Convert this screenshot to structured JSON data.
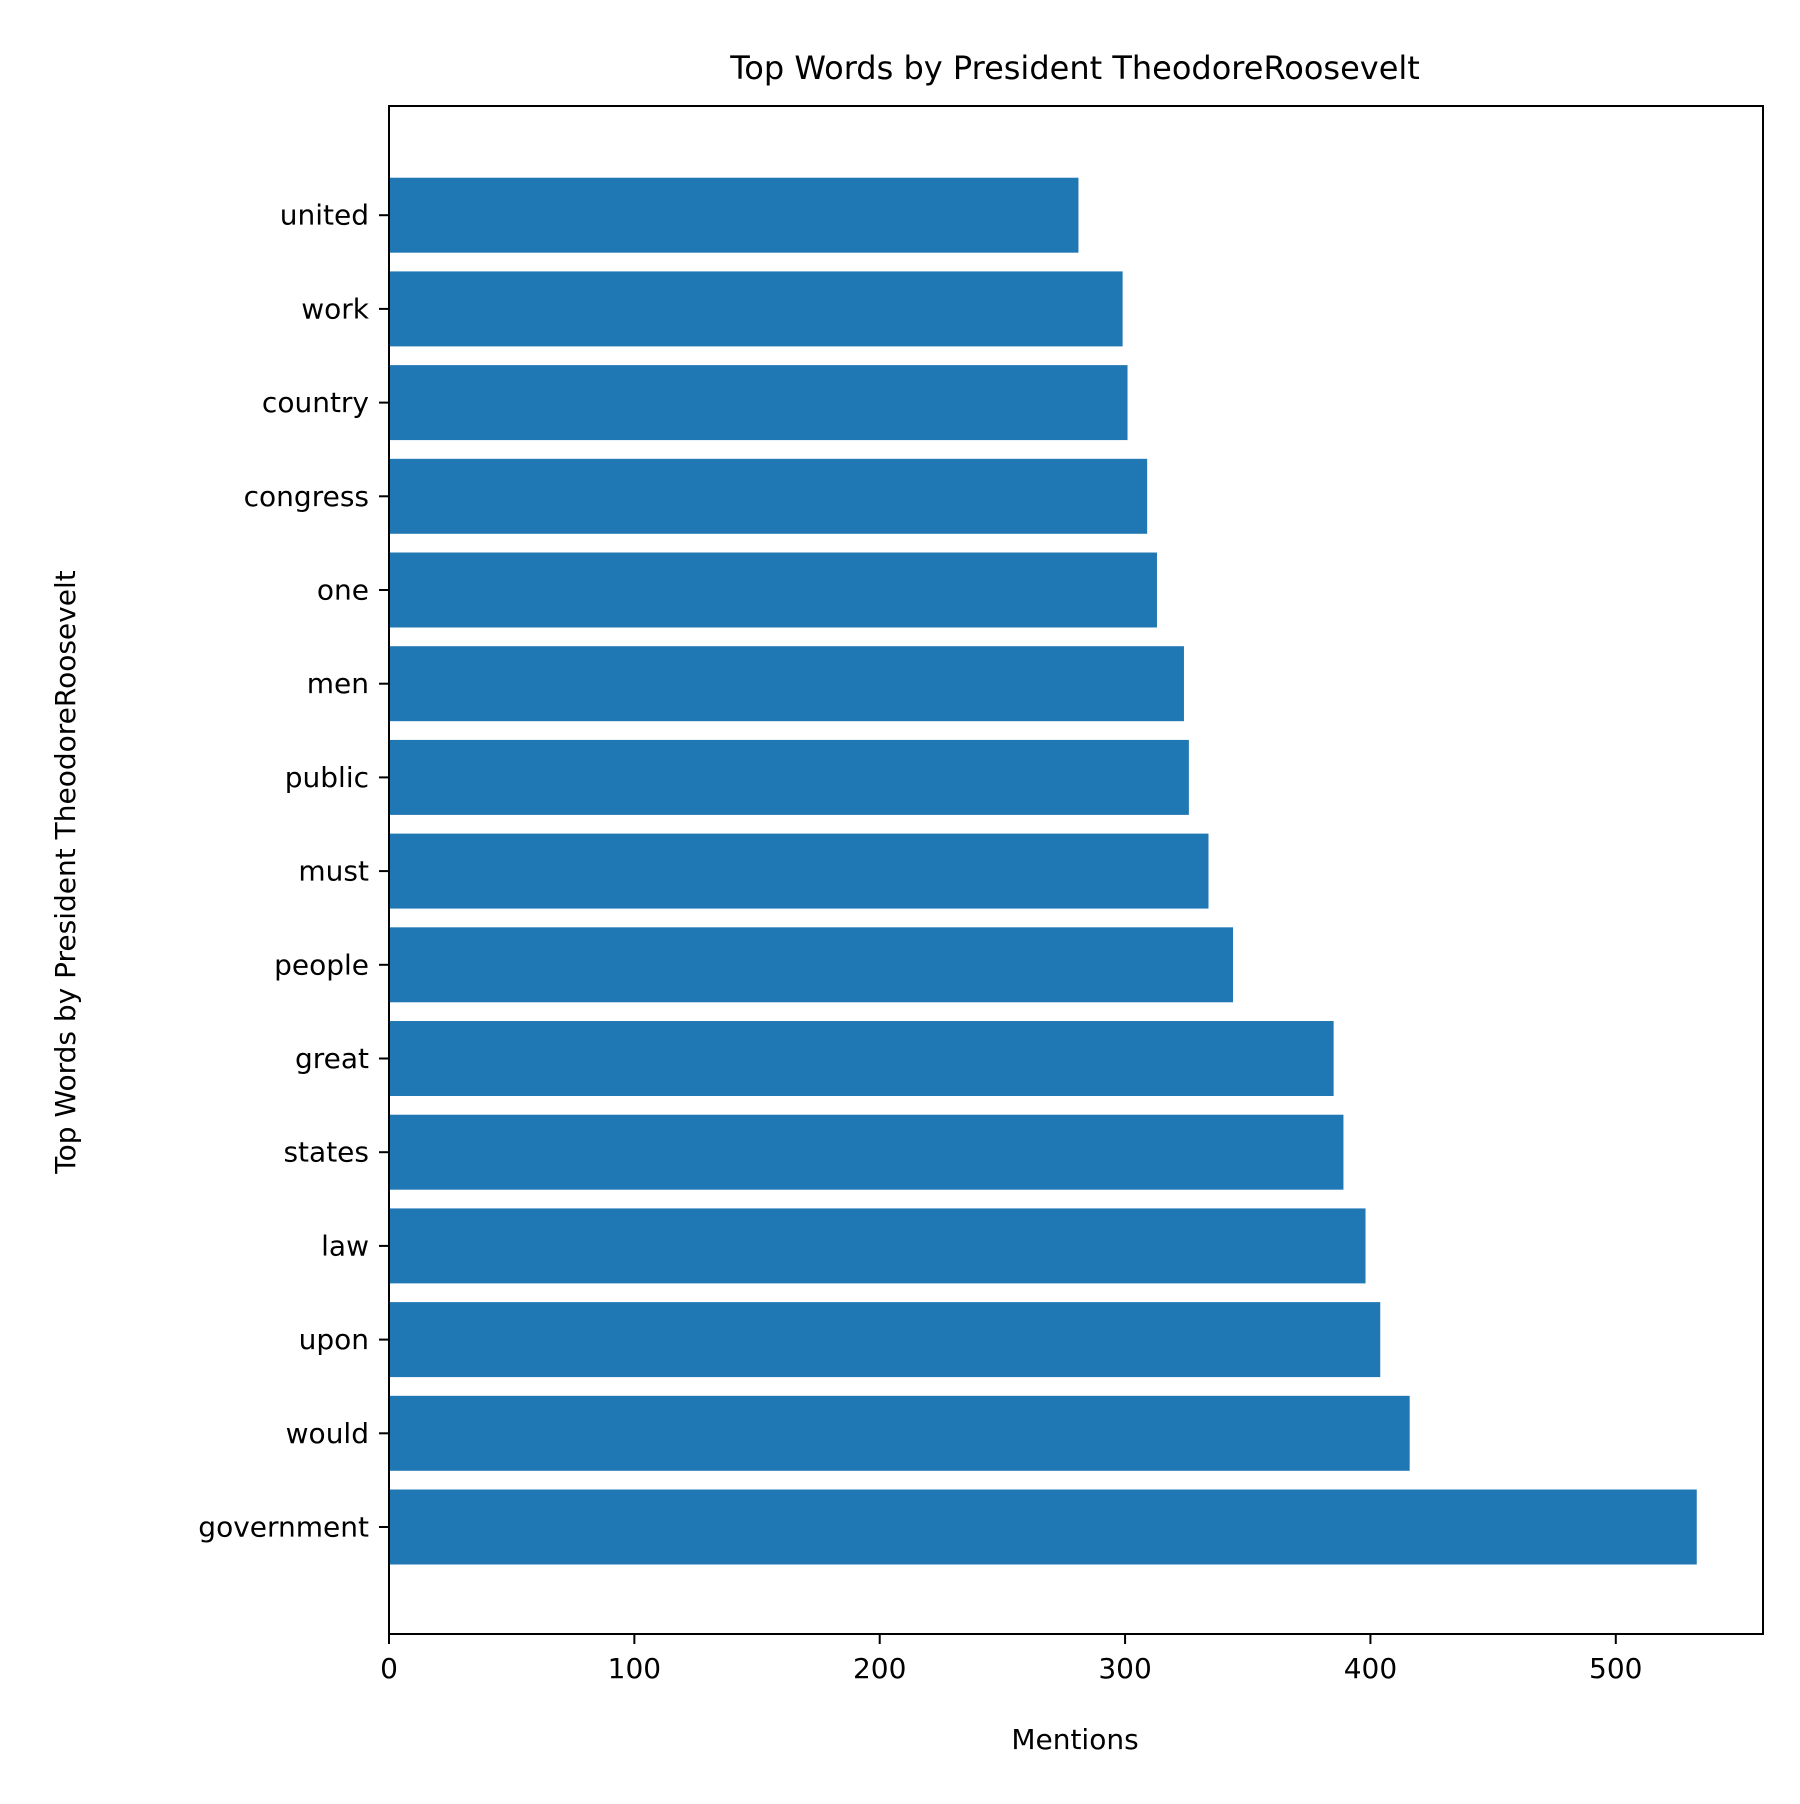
{
  "chart_data": {
    "type": "bar",
    "orientation": "horizontal",
    "title": "Top Words by President TheodoreRoosevelt",
    "xlabel": "Mentions",
    "ylabel": "Top Words by President TheodoreRoosevelt",
    "categories": [
      "government",
      "would",
      "upon",
      "law",
      "states",
      "great",
      "people",
      "must",
      "public",
      "men",
      "one",
      "congress",
      "country",
      "work",
      "united"
    ],
    "values": [
      533,
      416,
      404,
      398,
      389,
      385,
      344,
      334,
      326,
      324,
      313,
      309,
      301,
      299,
      281
    ],
    "xlim": [
      0,
      560
    ],
    "xticks": [
      0,
      100,
      200,
      300,
      400,
      500
    ],
    "grid": false,
    "legend": "none",
    "bar_color": "#1f77b4"
  }
}
